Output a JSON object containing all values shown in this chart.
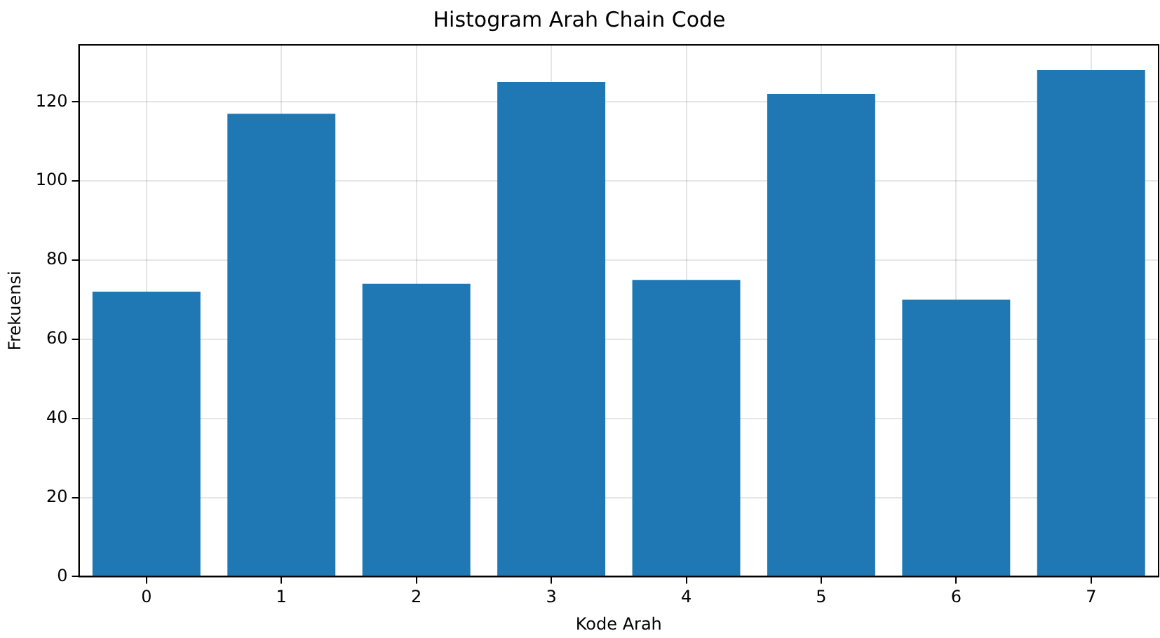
{
  "chart_data": {
    "type": "bar",
    "title": "Histogram Arah Chain Code",
    "xlabel": "Kode Arah",
    "ylabel": "Frekuensi",
    "categories": [
      "0",
      "1",
      "2",
      "3",
      "4",
      "5",
      "6",
      "7"
    ],
    "values": [
      72,
      117,
      74,
      125,
      75,
      122,
      70,
      128
    ],
    "color": "#1f77b4",
    "ylim": [
      0,
      134.4
    ],
    "yticks": [
      0,
      20,
      40,
      60,
      80,
      100,
      120
    ],
    "grid": true
  }
}
